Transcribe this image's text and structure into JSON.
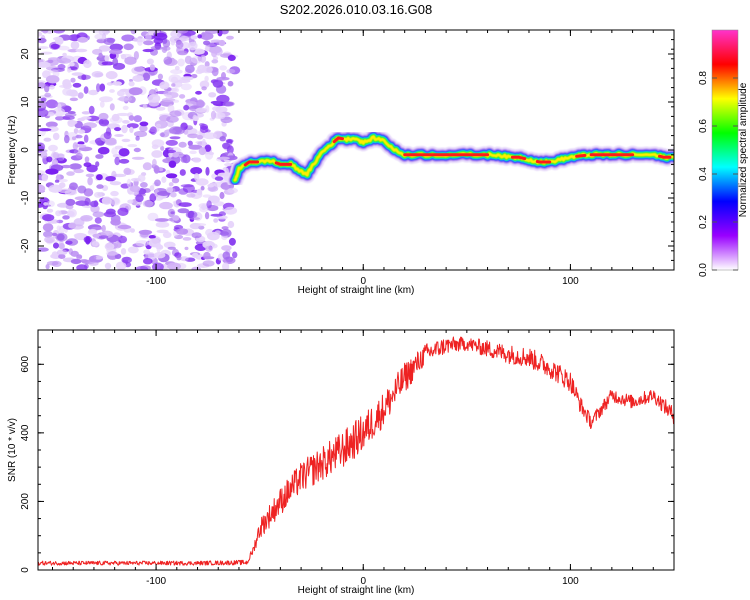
{
  "title": "S202.2026.010.03.16.G08",
  "chart_data": [
    {
      "type": "heatmap",
      "name": "spectrogram",
      "xlabel": "Height of straight line (km)",
      "ylabel": "Frequency (Hz)",
      "xlim": [
        -157,
        150
      ],
      "ylim": [
        -25,
        25
      ],
      "xticks": [
        -100,
        0,
        100
      ],
      "yticks": [
        -20,
        -10,
        0,
        10,
        20
      ],
      "noise_region_x": [
        -157,
        -62
      ],
      "ridge": {
        "x": [
          -62,
          -60,
          -55,
          -50,
          -45,
          -40,
          -35,
          -30,
          -27,
          -24,
          -20,
          -16,
          -12,
          -8,
          -4,
          0,
          5,
          10,
          15,
          20,
          30,
          40,
          50,
          60,
          65,
          70,
          75,
          80,
          85,
          90,
          95,
          100,
          105,
          110,
          115,
          120,
          130,
          140,
          145,
          150
        ],
        "freq": [
          -6.5,
          -4,
          -2.5,
          -2.5,
          -2.2,
          -3,
          -3,
          -4.5,
          -5,
          -3,
          -0.5,
          1,
          2.5,
          2.2,
          2.5,
          1.5,
          2.5,
          2,
          0,
          -1,
          -1,
          -1,
          -1,
          -1,
          -1,
          -1.5,
          -1.5,
          -2,
          -2.5,
          -2.5,
          -2,
          -1.5,
          -1.2,
          -1,
          -1,
          -1,
          -1,
          -1,
          -1.5,
          -1.5
        ]
      },
      "colorbar": {
        "label": "Normalized spectral amplitude",
        "range": [
          0,
          1
        ],
        "ticks": [
          "0.0",
          "0.2",
          "0.4",
          "0.6",
          "0.8"
        ],
        "stops": [
          "#ffffff",
          "#9900ff",
          "#0000ff",
          "#00ffff",
          "#00ff00",
          "#ffff00",
          "#ff0000",
          "#ff33cc"
        ]
      }
    },
    {
      "type": "line",
      "name": "snr",
      "xlabel": "Height of straight line (km)",
      "ylabel": "SNR (10 * v/v)",
      "xlim": [
        -157,
        150
      ],
      "ylim": [
        0,
        700
      ],
      "xticks": [
        -100,
        0,
        100
      ],
      "yticks": [
        0,
        200,
        400,
        600
      ],
      "color": "#ee2222",
      "series": [
        {
          "name": "SNR",
          "x": [
            -157,
            -120,
            -80,
            -56,
            -53,
            -50,
            -40,
            -30,
            -20,
            -10,
            0,
            10,
            20,
            30,
            40,
            50,
            60,
            70,
            80,
            90,
            100,
            105,
            110,
            115,
            120,
            125,
            130,
            140,
            145,
            150
          ],
          "y": [
            20,
            20,
            20,
            22,
            60,
            120,
            200,
            270,
            310,
            350,
            400,
            470,
            560,
            630,
            655,
            660,
            645,
            630,
            620,
            590,
            550,
            480,
            430,
            470,
            510,
            500,
            490,
            510,
            480,
            450
          ],
          "spread": [
            12,
            12,
            12,
            14,
            25,
            60,
            80,
            90,
            100,
            110,
            110,
            100,
            90,
            60,
            50,
            40,
            50,
            55,
            60,
            60,
            60,
            50,
            40,
            40,
            40,
            40,
            40,
            40,
            45,
            50
          ]
        }
      ]
    }
  ]
}
